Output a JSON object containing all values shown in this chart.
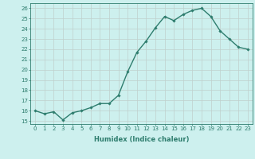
{
  "x": [
    0,
    1,
    2,
    3,
    4,
    5,
    6,
    7,
    8,
    9,
    10,
    11,
    12,
    13,
    14,
    15,
    16,
    17,
    18,
    19,
    20,
    21,
    22,
    23
  ],
  "y": [
    16.0,
    15.7,
    15.9,
    15.1,
    15.8,
    16.0,
    16.3,
    16.7,
    16.7,
    17.5,
    19.8,
    21.7,
    22.8,
    24.1,
    25.2,
    24.8,
    25.4,
    25.8,
    26.0,
    25.2,
    23.8,
    23.0,
    22.2,
    22.0
  ],
  "line_color": "#2e7d6e",
  "marker": "D",
  "marker_size": 1.8,
  "bg_color": "#cdf0ee",
  "grid_color": "#c0d0cc",
  "xlabel": "Humidex (Indice chaleur)",
  "yticks": [
    15,
    16,
    17,
    18,
    19,
    20,
    21,
    22,
    23,
    24,
    25,
    26
  ],
  "ylim": [
    14.7,
    26.5
  ],
  "xlim": [
    -0.5,
    23.5
  ],
  "tick_color": "#2e7d6e",
  "label_color": "#2e7d6e",
  "linewidth": 1.0,
  "tick_fontsize": 5.0,
  "xlabel_fontsize": 6.0
}
